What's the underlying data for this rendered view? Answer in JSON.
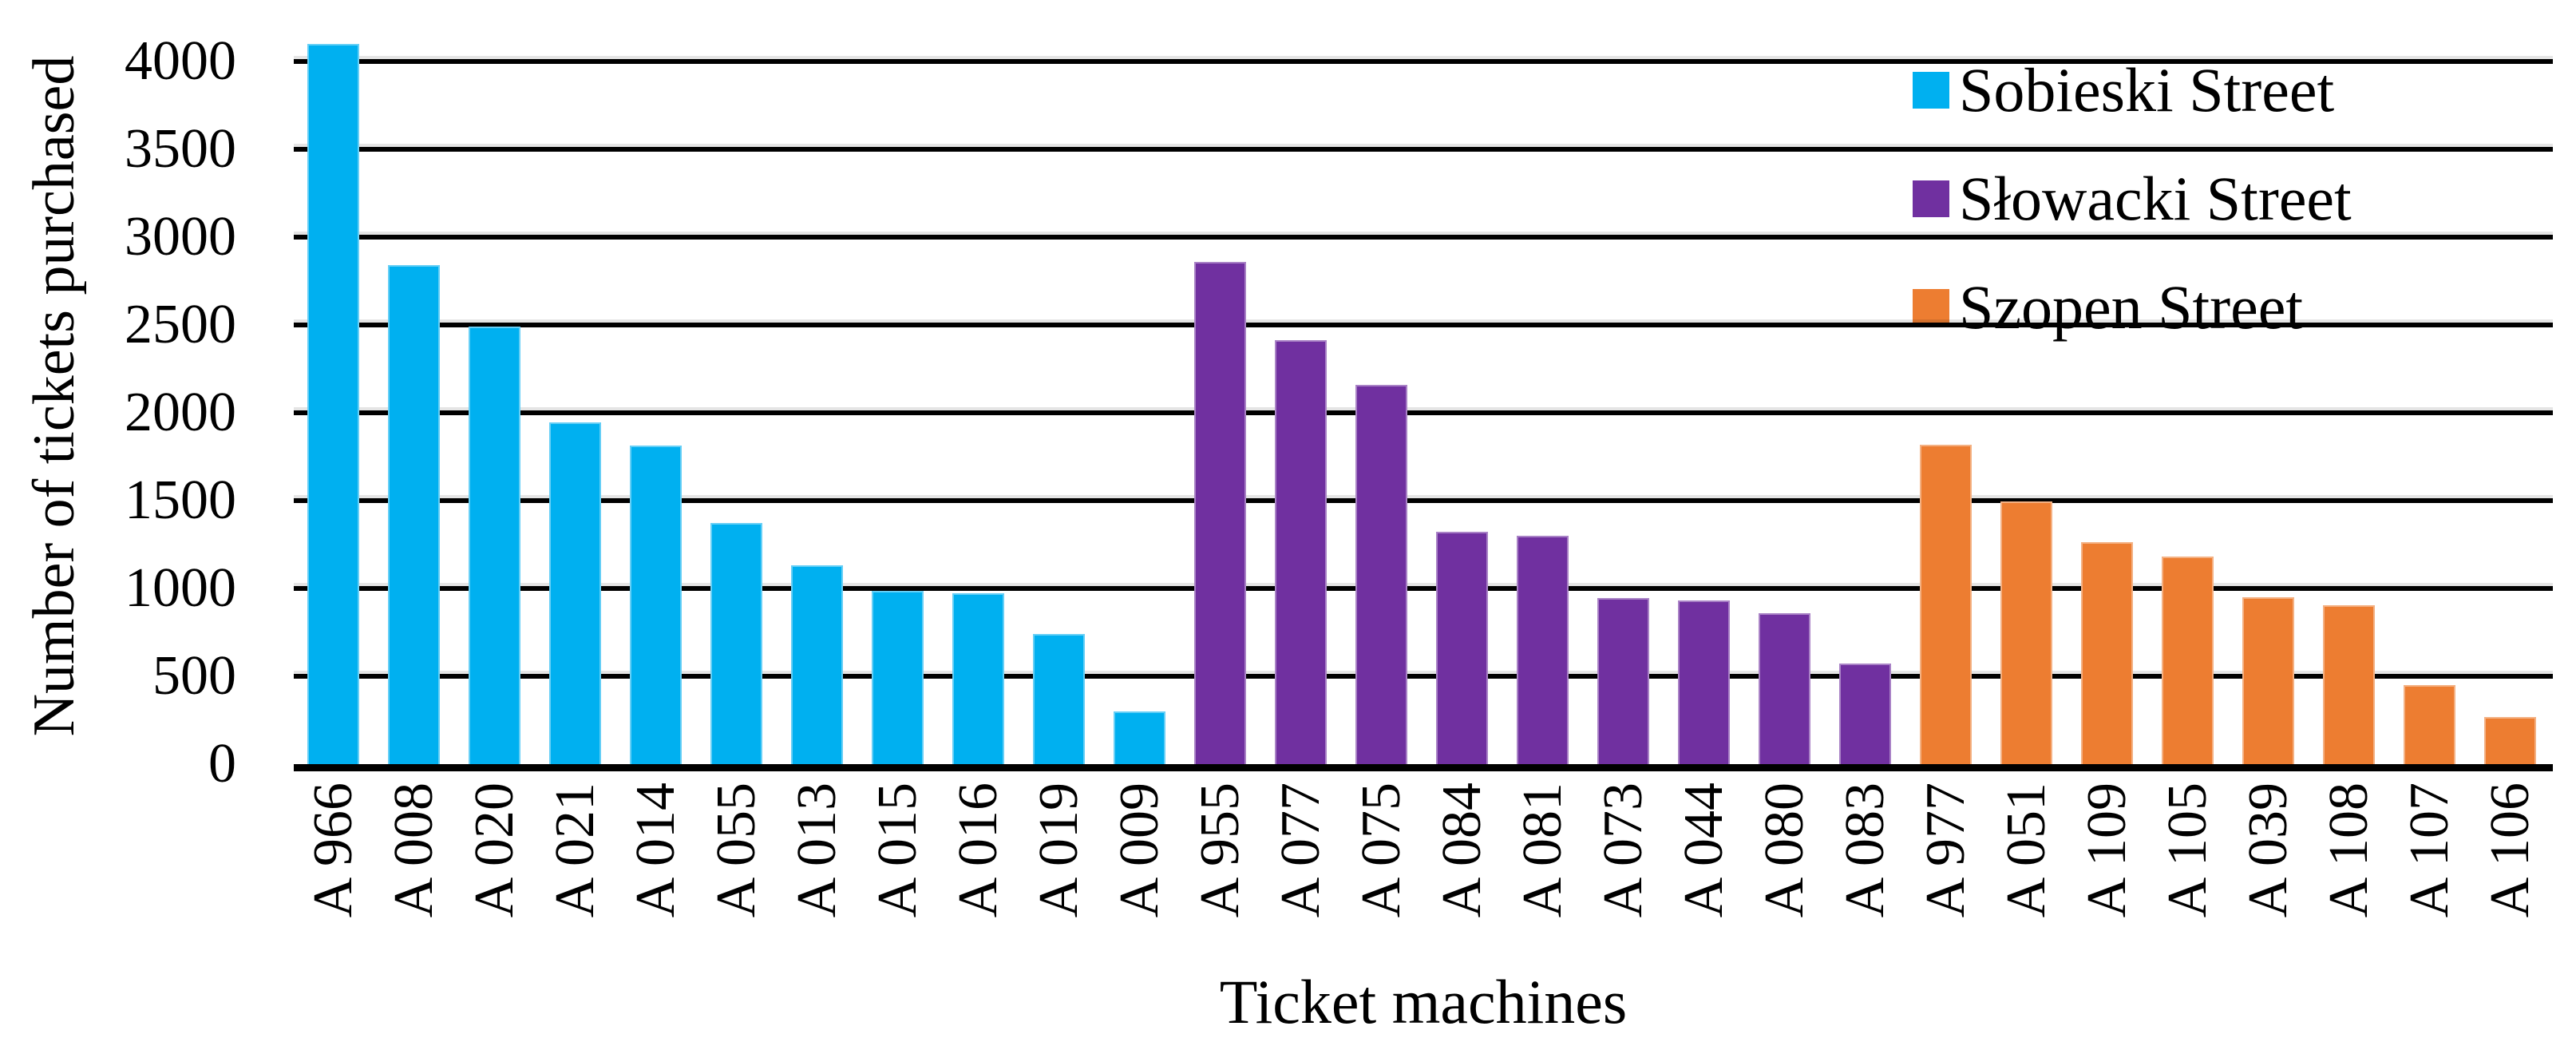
{
  "figure": {
    "background": "#ffffff",
    "text_color": "#000000",
    "gridline_color": "#000000"
  },
  "chart_data": {
    "type": "bar",
    "title": "",
    "xlabel": "Ticket machines",
    "ylabel": "Number of tickets purchased",
    "ylim": [
      0,
      4000
    ],
    "yticks": [
      0,
      500,
      1000,
      1500,
      2000,
      2500,
      3000,
      3500,
      4000
    ],
    "grid": true,
    "legend_position": "top-right",
    "legend": [
      {
        "label": "Sobieski Street",
        "color": "#00B0F0"
      },
      {
        "label": "Słowacki Street",
        "color": "#7030A0"
      },
      {
        "label": "Szopen Street",
        "color": "#ED7D31"
      }
    ],
    "series": [
      {
        "name": "Sobieski Street",
        "color": "#00B0F0",
        "bars": [
          {
            "label": "A 966",
            "value": 4100
          },
          {
            "label": "A 008",
            "value": 2840
          },
          {
            "label": "A 020",
            "value": 2490
          },
          {
            "label": "A 021",
            "value": 1945
          },
          {
            "label": "A 014",
            "value": 1815
          },
          {
            "label": "A 055",
            "value": 1375
          },
          {
            "label": "A 013",
            "value": 1130
          },
          {
            "label": "A 015",
            "value": 985
          },
          {
            "label": "A 016",
            "value": 975
          },
          {
            "label": "A 019",
            "value": 740
          },
          {
            "label": "A 009",
            "value": 300
          }
        ]
      },
      {
        "name": "Słowacki Street",
        "color": "#7030A0",
        "bars": [
          {
            "label": "A 955",
            "value": 2860
          },
          {
            "label": "A 077",
            "value": 2415
          },
          {
            "label": "A 075",
            "value": 2160
          },
          {
            "label": "A 084",
            "value": 1325
          },
          {
            "label": "A 081",
            "value": 1300
          },
          {
            "label": "A 073",
            "value": 945
          },
          {
            "label": "A 044",
            "value": 930
          },
          {
            "label": "A 080",
            "value": 860
          },
          {
            "label": "A 083",
            "value": 575
          }
        ]
      },
      {
        "name": "Szopen Street",
        "color": "#ED7D31",
        "bars": [
          {
            "label": "A 977",
            "value": 1820
          },
          {
            "label": "A 051",
            "value": 1495
          },
          {
            "label": "A 109",
            "value": 1265
          },
          {
            "label": "A 105",
            "value": 1180
          },
          {
            "label": "A 039",
            "value": 950
          },
          {
            "label": "A 108",
            "value": 905
          },
          {
            "label": "A 107",
            "value": 450
          },
          {
            "label": "A 106",
            "value": 270
          }
        ]
      }
    ]
  }
}
